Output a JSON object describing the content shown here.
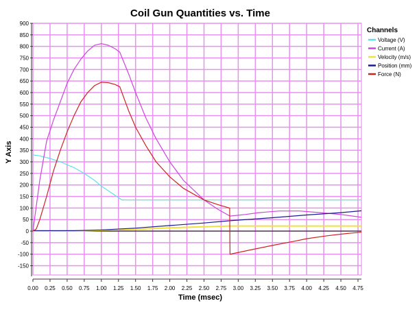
{
  "chart_data": {
    "type": "line",
    "title": "Coil Gun Quantities vs. Time",
    "xlabel": "Time (msec)",
    "ylabel": "Y Axis",
    "xlim": [
      0,
      4.8
    ],
    "ylim": [
      -190,
      900
    ],
    "xticks": [
      "0.00",
      "0.25",
      "0.50",
      "0.75",
      "1.00",
      "1.25",
      "1.50",
      "1.75",
      "2.00",
      "2.25",
      "2.50",
      "2.75",
      "3.00",
      "3.25",
      "3.50",
      "3.75",
      "4.00",
      "4.25",
      "4.50",
      "4.75"
    ],
    "yticks": [
      900,
      850,
      800,
      750,
      700,
      650,
      600,
      550,
      500,
      450,
      400,
      350,
      300,
      250,
      200,
      150,
      100,
      50,
      0,
      -50,
      -100,
      -150
    ],
    "grid": true,
    "legend": {
      "title": "Channels",
      "placement": "right"
    },
    "series": [
      {
        "name": "Voltage (V)",
        "color": "#5ce1e6",
        "x": [
          0,
          0.1,
          0.25,
          0.4,
          0.6,
          0.75,
          0.9,
          1.0,
          1.15,
          1.3,
          4.8
        ],
        "y": [
          330,
          326,
          315,
          300,
          275,
          250,
          220,
          195,
          165,
          135,
          135
        ]
      },
      {
        "name": "Current (A)",
        "color": "#cc44dd",
        "x": [
          0,
          0.1,
          0.2,
          0.3,
          0.4,
          0.5,
          0.6,
          0.7,
          0.8,
          0.9,
          1.0,
          1.1,
          1.2,
          1.27,
          1.4,
          1.5,
          1.65,
          1.8,
          2.0,
          2.2,
          2.5,
          2.7,
          2.88,
          3.1,
          3.3,
          3.6,
          3.9,
          4.2,
          4.5,
          4.8
        ],
        "y": [
          0,
          220,
          390,
          480,
          560,
          640,
          700,
          745,
          780,
          805,
          812,
          805,
          790,
          775,
          680,
          600,
          490,
          400,
          300,
          220,
          135,
          95,
          65,
          72,
          80,
          87,
          87,
          80,
          72,
          60
        ]
      },
      {
        "name": "Velocity (m/s)",
        "color": "#f0e040",
        "x": [
          0,
          0.4,
          0.8,
          1.2,
          1.6,
          2.0,
          2.4,
          2.88,
          4.8
        ],
        "y": [
          0,
          0,
          2,
          5,
          9,
          14,
          18,
          22,
          22
        ]
      },
      {
        "name": "Position (mm)",
        "color": "#1a1a8c",
        "x": [
          0,
          0.3,
          0.6,
          1.0,
          1.5,
          2.0,
          2.5,
          2.88,
          3.5,
          4.0,
          4.5,
          4.8
        ],
        "y": [
          2,
          2,
          2,
          5,
          13,
          24,
          35,
          45,
          58,
          70,
          80,
          88
        ]
      },
      {
        "name": "Force (N)",
        "color": "#cc2222",
        "x": [
          0,
          0.05,
          0.1,
          0.2,
          0.3,
          0.4,
          0.5,
          0.6,
          0.7,
          0.8,
          0.9,
          1.0,
          1.1,
          1.2,
          1.27,
          1.4,
          1.5,
          1.65,
          1.8,
          2.0,
          2.2,
          2.5,
          2.7,
          2.875,
          2.88,
          3.2,
          3.5,
          3.8,
          4.0,
          4.3,
          4.6,
          4.8
        ],
        "y": [
          0,
          10,
          50,
          150,
          260,
          350,
          430,
          500,
          560,
          600,
          630,
          645,
          643,
          635,
          625,
          520,
          450,
          370,
          300,
          235,
          185,
          135,
          115,
          100,
          -100,
          -80,
          -62,
          -45,
          -33,
          -20,
          -10,
          -5
        ]
      }
    ]
  }
}
